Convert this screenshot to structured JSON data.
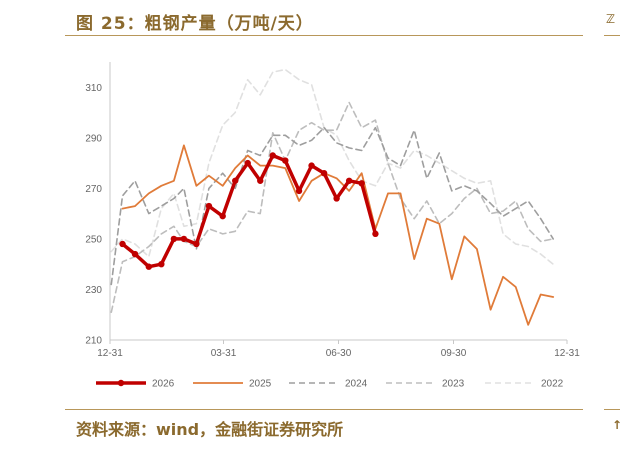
{
  "figure": {
    "title": "图 25：粗钢产量（万吨/天）",
    "source": "资料来源：wind，金融街证券研究所"
  },
  "chart_data": {
    "type": "line",
    "x_axis": {
      "type": "day-of-year",
      "ticks": [
        "12-31",
        "03-31",
        "06-30",
        "09-30",
        "12-31"
      ]
    },
    "ylim": [
      210,
      320
    ],
    "yticks": [
      210,
      230,
      250,
      270,
      290,
      310
    ],
    "grid": false,
    "legend_position": "bottom",
    "series": [
      {
        "name": "2026",
        "color": "#C00000",
        "style": "solid-thick-markers",
        "x": [
          "01-10",
          "01-20",
          "01-31",
          "02-10",
          "02-20",
          "02-28",
          "03-10",
          "03-20",
          "03-31",
          "04-10",
          "04-20",
          "04-30",
          "05-10",
          "05-20",
          "05-31",
          "06-10",
          "06-20",
          "06-30",
          "07-10",
          "07-20",
          "07-31"
        ],
        "y": [
          248,
          244,
          239,
          240,
          250,
          250,
          248,
          263,
          259,
          273,
          280,
          273,
          283,
          281,
          269,
          279,
          276,
          266,
          273,
          272,
          252
        ]
      },
      {
        "name": "2025",
        "color": "#E07B39",
        "style": "solid",
        "x": [
          "01-10",
          "01-20",
          "01-31",
          "02-10",
          "02-20",
          "02-28",
          "03-10",
          "03-20",
          "03-31",
          "04-10",
          "04-20",
          "04-30",
          "05-10",
          "05-20",
          "05-31",
          "06-10",
          "06-20",
          "06-30",
          "07-10",
          "07-20",
          "07-31",
          "08-10",
          "08-20",
          "08-31",
          "09-10",
          "09-20",
          "09-30",
          "10-10",
          "10-20",
          "10-31",
          "11-10",
          "11-20",
          "11-30",
          "12-10",
          "12-20"
        ],
        "y": [
          262,
          263,
          268,
          271,
          273,
          287,
          271,
          275,
          271,
          278,
          283,
          279,
          279,
          278,
          265,
          273,
          276,
          274,
          269,
          276,
          254,
          268,
          268,
          242,
          258,
          256,
          234,
          251,
          246,
          222,
          235,
          231,
          216,
          228,
          227
        ]
      },
      {
        "name": "2024",
        "color": "#9E9E9E",
        "style": "dashed",
        "x": [
          "01-01",
          "01-10",
          "01-20",
          "01-31",
          "02-10",
          "02-20",
          "02-28",
          "03-10",
          "03-20",
          "03-31",
          "04-10",
          "04-20",
          "04-30",
          "05-10",
          "05-20",
          "05-31",
          "06-10",
          "06-20",
          "06-30",
          "07-10",
          "07-20",
          "07-31",
          "08-10",
          "08-20",
          "08-31",
          "09-10",
          "09-20",
          "09-30",
          "10-10",
          "10-20",
          "10-31",
          "11-10",
          "11-20",
          "11-30",
          "12-10",
          "12-20"
        ],
        "y": [
          232,
          267,
          273,
          260,
          263,
          266,
          270,
          246,
          270,
          276,
          270,
          285,
          283,
          291,
          291,
          287,
          289,
          294,
          288,
          286,
          285,
          294,
          282,
          279,
          293,
          274,
          284,
          269,
          271,
          269,
          264,
          259,
          262,
          265,
          258,
          250
        ]
      },
      {
        "name": "2023",
        "color": "#BDBDBD",
        "style": "dashed",
        "x": [
          "01-01",
          "01-10",
          "01-20",
          "01-31",
          "02-10",
          "02-20",
          "02-28",
          "03-10",
          "03-20",
          "03-31",
          "04-10",
          "04-20",
          "04-30",
          "05-10",
          "05-20",
          "05-31",
          "06-10",
          "06-20",
          "06-30",
          "07-10",
          "07-20",
          "07-31",
          "08-10",
          "08-20",
          "08-31",
          "09-10",
          "09-20",
          "09-30",
          "10-10",
          "10-20",
          "10-31",
          "11-10",
          "11-20",
          "11-30",
          "12-10",
          "12-20"
        ],
        "y": [
          221,
          241,
          243,
          247,
          252,
          255,
          249,
          247,
          254,
          252,
          253,
          261,
          260,
          292,
          281,
          293,
          296,
          293,
          293,
          304,
          294,
          297,
          280,
          266,
          258,
          265,
          256,
          260,
          266,
          270,
          260,
          261,
          265,
          254,
          249,
          250
        ]
      },
      {
        "name": "2022",
        "color": "#E0E0E0",
        "style": "dashed",
        "x": [
          "01-01",
          "01-10",
          "01-20",
          "01-31",
          "02-10",
          "02-20",
          "02-28",
          "03-10",
          "03-20",
          "03-31",
          "04-10",
          "04-20",
          "04-30",
          "05-10",
          "05-20",
          "05-31",
          "06-10",
          "06-20",
          "06-30",
          "07-10",
          "07-20",
          "07-31",
          "08-10",
          "08-20",
          "08-31",
          "09-10",
          "09-20",
          "09-30",
          "10-10",
          "10-20",
          "10-31",
          "11-10",
          "11-20",
          "11-30",
          "12-10",
          "12-20"
        ],
        "y": [
          245,
          250,
          248,
          243,
          262,
          268,
          255,
          256,
          280,
          295,
          300,
          313,
          307,
          316,
          317,
          313,
          311,
          294,
          291,
          281,
          273,
          271,
          280,
          278,
          285,
          283,
          280,
          277,
          274,
          272,
          273,
          252,
          248,
          247,
          244,
          240
        ]
      }
    ]
  }
}
